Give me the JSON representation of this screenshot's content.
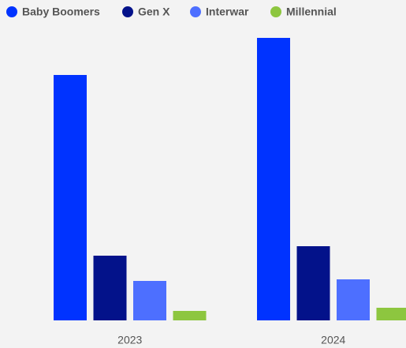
{
  "chart_data": {
    "type": "bar",
    "categories": [
      "2023",
      "2024"
    ],
    "series": [
      {
        "name": "Baby Boomers",
        "color": "#0033ff",
        "values": [
          311,
          358
        ]
      },
      {
        "name": "Gen X",
        "color": "#03128a",
        "values": [
          82,
          94
        ]
      },
      {
        "name": "Interwar",
        "color": "#4d6fff",
        "values": [
          50,
          52
        ]
      },
      {
        "name": "Millennial",
        "color": "#8dc63f",
        "values": [
          12,
          16
        ]
      }
    ],
    "ylim": [
      0,
      360
    ]
  }
}
